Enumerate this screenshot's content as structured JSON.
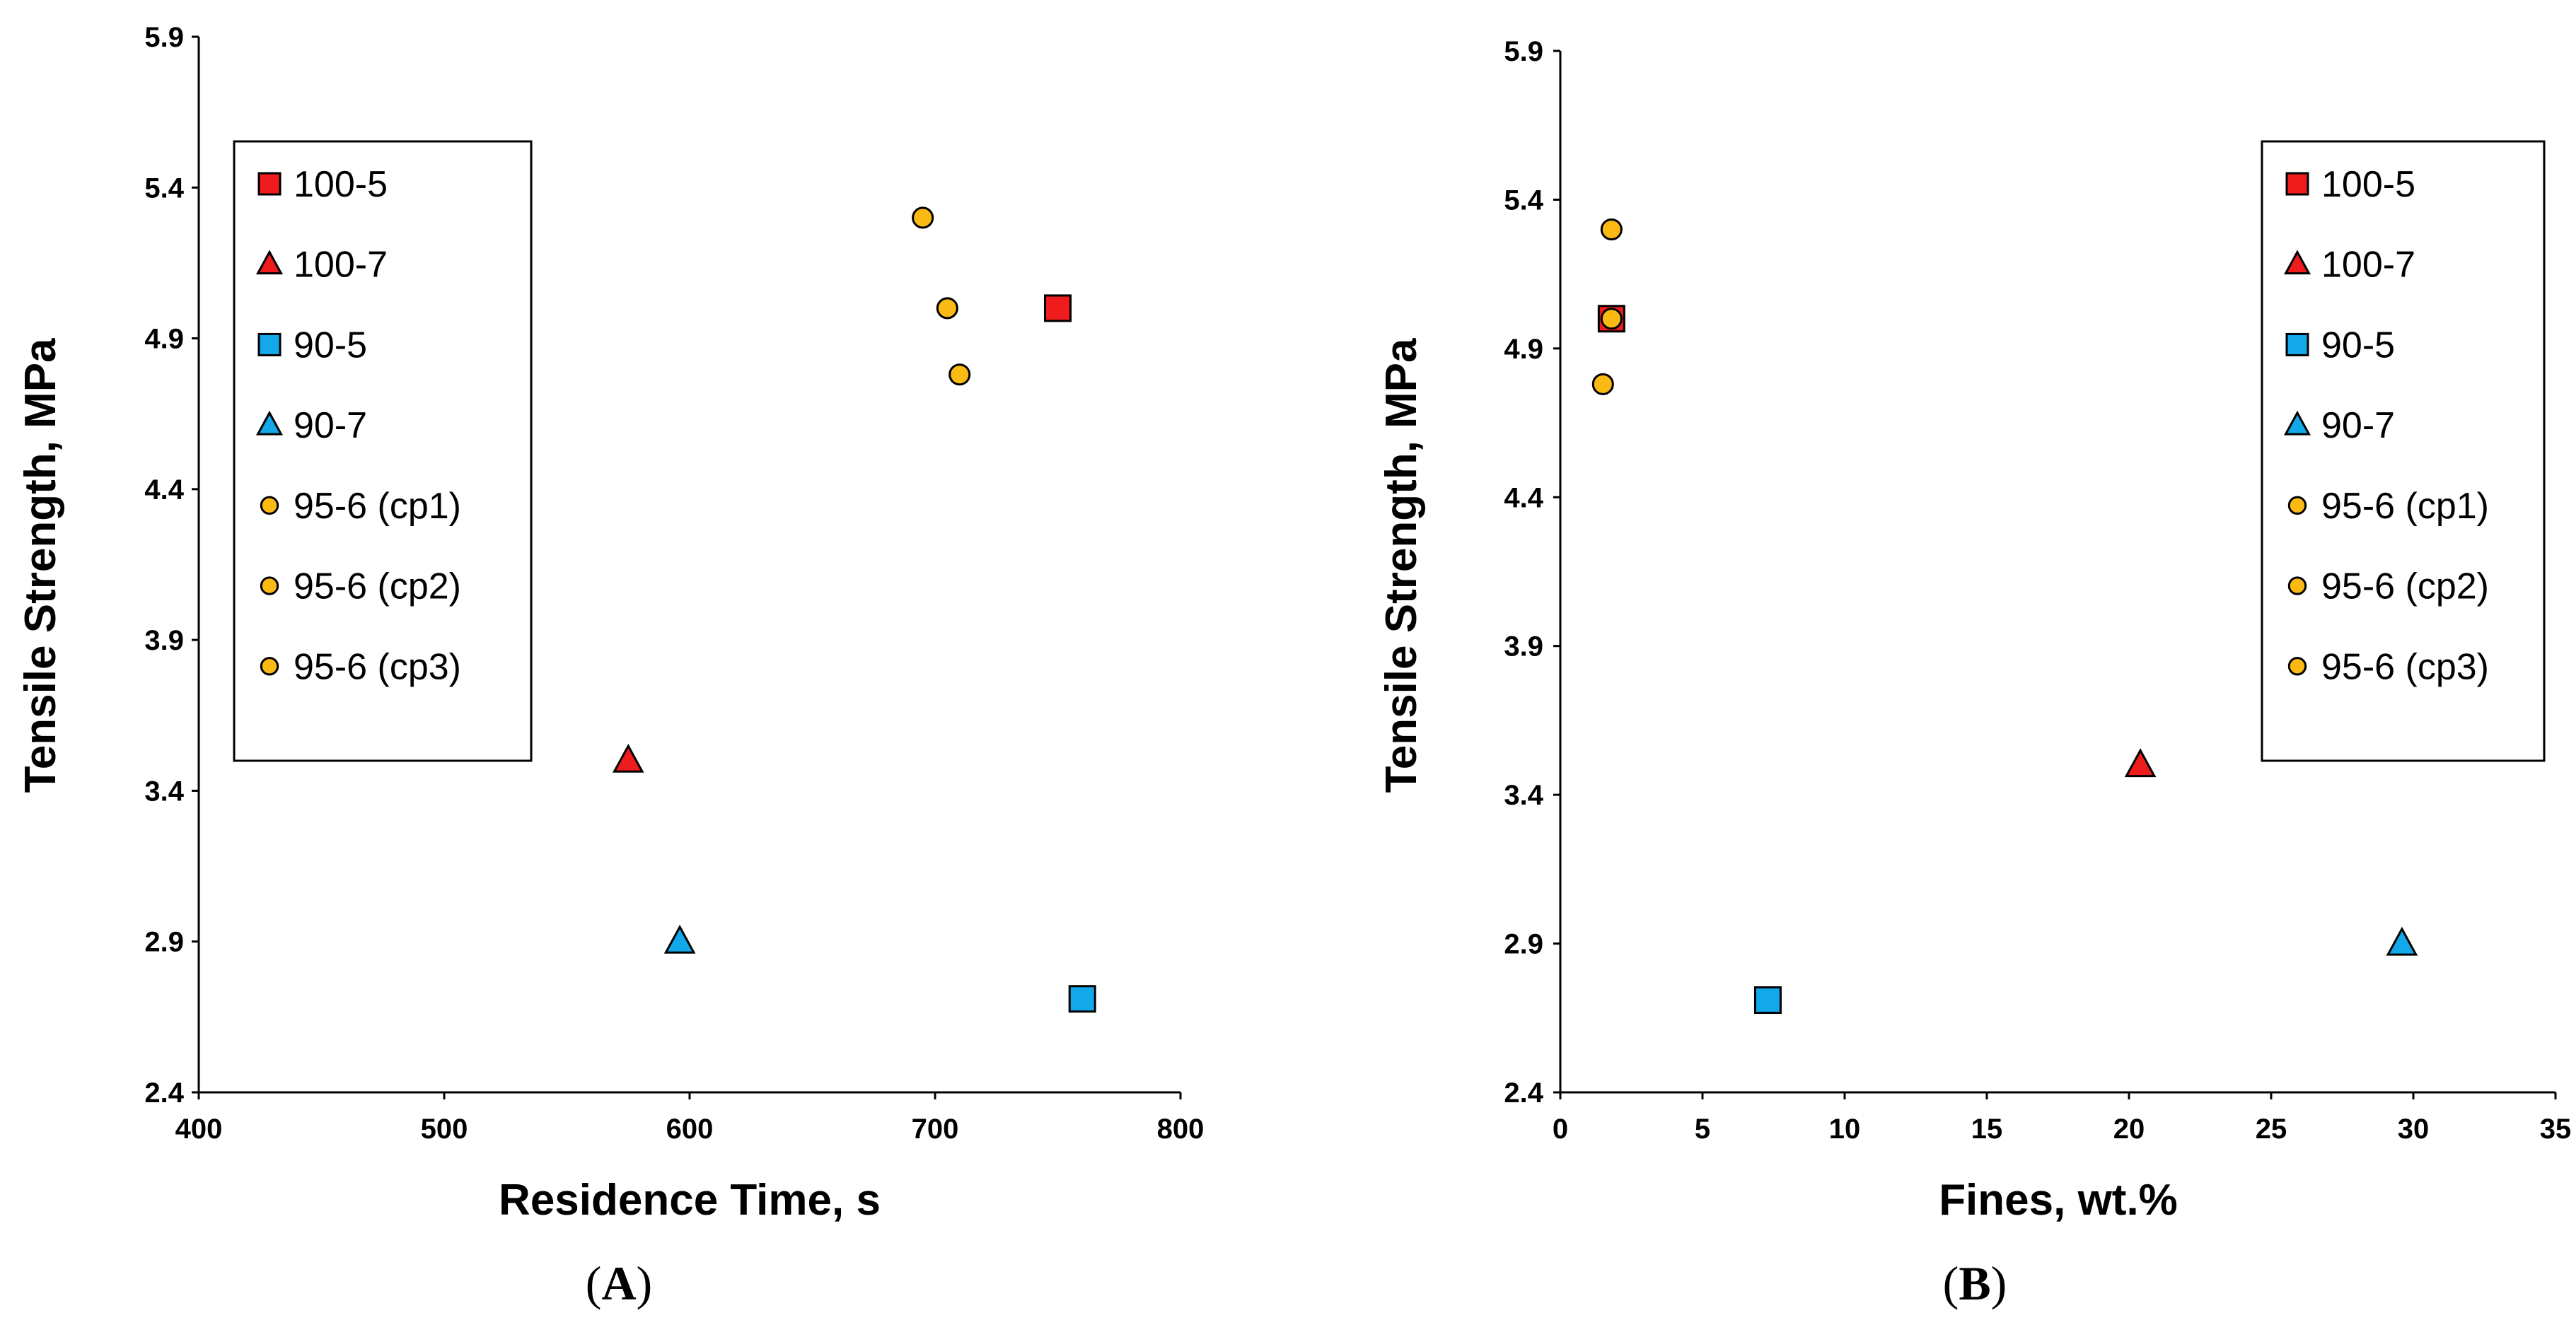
{
  "colors": {
    "red": "#ee1c1c",
    "blue": "#12a8ea",
    "orange": "#fbb914",
    "outline": "#000000"
  },
  "legend": [
    {
      "label": "100-5",
      "marker": "square",
      "color": "#ee1c1c"
    },
    {
      "label": "100-7",
      "marker": "triangle",
      "color": "#ee1c1c"
    },
    {
      "label": "90-5",
      "marker": "square",
      "color": "#12a8ea"
    },
    {
      "label": "90-7",
      "marker": "triangle",
      "color": "#12a8ea"
    },
    {
      "label": "95-6 (cp1)",
      "marker": "circle",
      "color": "#fbb914"
    },
    {
      "label": "95-6 (cp2)",
      "marker": "circle",
      "color": "#fbb914"
    },
    {
      "label": "95-6 (cp3)",
      "marker": "circle",
      "color": "#fbb914"
    }
  ],
  "chart_data": [
    {
      "type": "scatter",
      "panel": "A",
      "xlabel": "Residence Time, s",
      "ylabel": "Tensile Strength, MPa",
      "xlim": [
        400,
        800
      ],
      "ylim": [
        2.4,
        5.9
      ],
      "xticks": [
        "400",
        "500",
        "600",
        "700",
        "800"
      ],
      "yticks": [
        "2.4",
        "2.9",
        "3.4",
        "3.9",
        "4.4",
        "4.9",
        "5.4",
        "5.9"
      ],
      "legend_position": "top-left",
      "series": [
        {
          "name": "100-5",
          "x": [
            750
          ],
          "y": [
            5.0
          ]
        },
        {
          "name": "100-7",
          "x": [
            575
          ],
          "y": [
            3.5
          ]
        },
        {
          "name": "90-5",
          "x": [
            760
          ],
          "y": [
            2.71
          ]
        },
        {
          "name": "90-7",
          "x": [
            596
          ],
          "y": [
            2.9
          ]
        },
        {
          "name": "95-6 (cp1)",
          "x": [
            695
          ],
          "y": [
            5.3
          ]
        },
        {
          "name": "95-6 (cp2)",
          "x": [
            705
          ],
          "y": [
            5.0
          ]
        },
        {
          "name": "95-6 (cp3)",
          "x": [
            710
          ],
          "y": [
            4.78
          ]
        }
      ]
    },
    {
      "type": "scatter",
      "panel": "B",
      "xlabel": "Fines, wt.%",
      "ylabel": "Tensile Strength, MPa",
      "xlim": [
        0,
        35
      ],
      "ylim": [
        2.4,
        5.9
      ],
      "xticks": [
        "0",
        "5",
        "10",
        "15",
        "20",
        "25",
        "30",
        "35"
      ],
      "yticks": [
        "2.4",
        "2.9",
        "3.4",
        "3.9",
        "4.4",
        "4.9",
        "5.4",
        "5.9"
      ],
      "legend_position": "top-right",
      "series": [
        {
          "name": "100-5",
          "x": [
            1.8
          ],
          "y": [
            5.0
          ]
        },
        {
          "name": "100-7",
          "x": [
            20.4
          ],
          "y": [
            3.5
          ]
        },
        {
          "name": "90-5",
          "x": [
            7.3
          ],
          "y": [
            2.71
          ]
        },
        {
          "name": "90-7",
          "x": [
            29.6
          ],
          "y": [
            2.9
          ]
        },
        {
          "name": "95-6 (cp1)",
          "x": [
            1.8
          ],
          "y": [
            5.3
          ]
        },
        {
          "name": "95-6 (cp2)",
          "x": [
            1.8
          ],
          "y": [
            5.0
          ]
        },
        {
          "name": "95-6 (cp3)",
          "x": [
            1.5
          ],
          "y": [
            4.78
          ]
        }
      ]
    }
  ],
  "captions": {
    "a": {
      "open": "(",
      "letter": "A",
      "close": ")"
    },
    "b": {
      "open": "(",
      "letter": "B",
      "close": ")"
    }
  }
}
